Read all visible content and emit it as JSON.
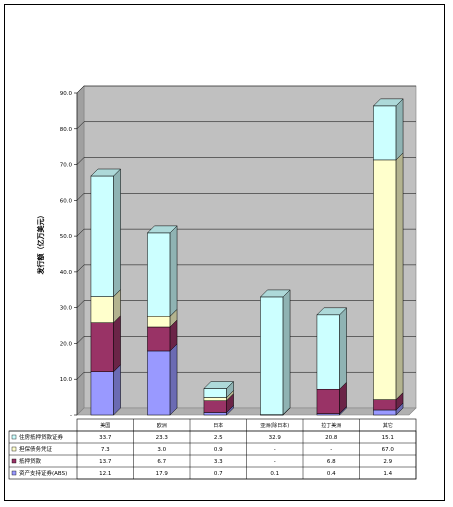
{
  "chart_data": {
    "type": "bar",
    "stacked": true,
    "three_d": true,
    "ylabel": "发行额（亿万美元）",
    "ylim": [
      0,
      90
    ],
    "yticks": [
      "90.0",
      "80.0",
      "70.0",
      "60.0",
      "50.0",
      "40.0",
      "30.0",
      "20.0",
      "10.0",
      "-"
    ],
    "grid": true,
    "plot_background": "#c0c0c0",
    "legend_placement": "data-table",
    "categories": [
      "美国",
      "欧洲",
      "日本",
      "亚洲(除日本)",
      "拉丁美洲",
      "其它"
    ],
    "series": [
      {
        "name": "资产支持证券(ABS)",
        "color": "#9999ff",
        "values": [
          12.1,
          17.9,
          0.7,
          0.1,
          0.4,
          1.4
        ],
        "labels": [
          "12.1",
          "17.9",
          "0.7",
          "0.1",
          "0.4",
          "1.4"
        ]
      },
      {
        "name": "抵押贷款",
        "color": "#993366",
        "values": [
          13.7,
          6.7,
          3.3,
          0,
          6.8,
          2.9
        ],
        "labels": [
          "13.7",
          "6.7",
          "3.3",
          "-",
          "6.8",
          "2.9"
        ]
      },
      {
        "name": "担保债务凭证",
        "color": "#ffffcc",
        "values": [
          7.3,
          3.0,
          0.9,
          0,
          0,
          67.0
        ],
        "labels": [
          "7.3",
          "3.0",
          "0.9",
          "-",
          "-",
          "67.0"
        ]
      },
      {
        "name": "住房抵押贷款证券",
        "color": "#ccffff",
        "values": [
          33.7,
          23.3,
          2.5,
          32.9,
          20.8,
          15.1
        ],
        "labels": [
          "33.7",
          "23.3",
          "2.5",
          "32.9",
          "20.8",
          "15.1"
        ]
      }
    ]
  }
}
